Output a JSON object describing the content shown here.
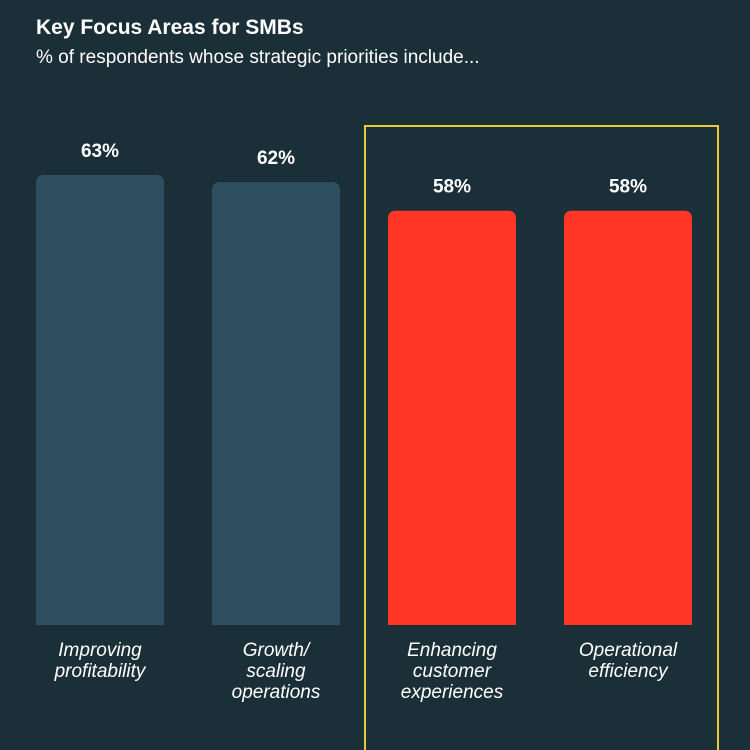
{
  "chart_data": {
    "type": "bar",
    "title": "Key Focus Areas for SMBs",
    "subtitle": "% of respondents whose strategic priorities include...",
    "categories": [
      "Improving\nprofitability",
      "Growth/\nscaling\noperations",
      "Enhancing\ncustomer\nexperiences",
      "Operational\nefficiency"
    ],
    "values": [
      63,
      62,
      58,
      58
    ],
    "value_labels": [
      "63%",
      "62%",
      "58%",
      "58%"
    ],
    "colors": [
      "#2d4f5f",
      "#2d4f5f",
      "#ff3526",
      "#ff3526"
    ]
  }
}
